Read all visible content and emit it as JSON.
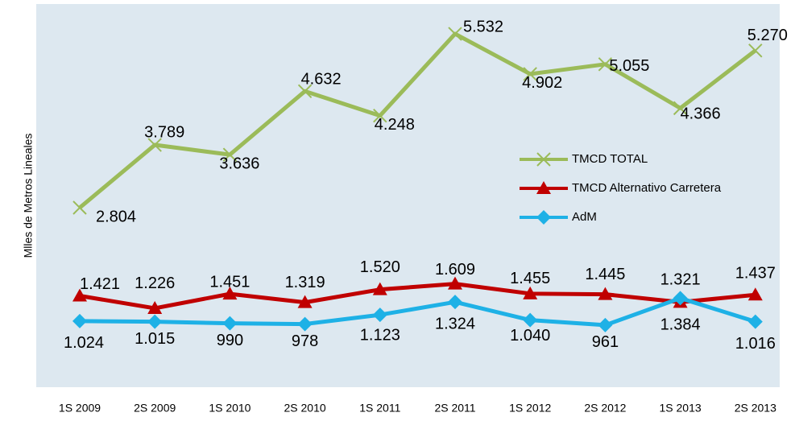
{
  "chart_data": {
    "type": "line",
    "y_label": "Mlles de Metros Lineales",
    "categories": [
      "1S 2009",
      "2S 2009",
      "1S 2010",
      "2S 2010",
      "1S 2011",
      "2S 2011",
      "1S 2012",
      "2S 2012",
      "1S 2013",
      "2S 2013"
    ],
    "ylim": [
      0,
      6000
    ],
    "legend": "inside",
    "series": [
      {
        "name": "TMCD TOTAL",
        "color": "#9bbb59",
        "marker": "x",
        "values": [
          2804,
          3789,
          3636,
          4632,
          4248,
          5532,
          4902,
          5055,
          4366,
          5270
        ],
        "value_labels": [
          "2.804",
          "3.789",
          "3.636",
          "4.632",
          "4.248",
          "5.532",
          "4.902",
          "5.055",
          "4.366",
          "5.270"
        ]
      },
      {
        "name": "TMCD Alternativo Carretera",
        "color": "#c00000",
        "marker": "triangle",
        "values": [
          1421,
          1226,
          1451,
          1319,
          1520,
          1609,
          1455,
          1445,
          1321,
          1437
        ],
        "value_labels": [
          "1.421",
          "1.226",
          "1.451",
          "1.319",
          "1.520",
          "1.609",
          "1.455",
          "1.445",
          "1.321",
          "1.437"
        ]
      },
      {
        "name": "AdM",
        "color": "#1eb1e6",
        "marker": "diamond",
        "values": [
          1024,
          1015,
          990,
          978,
          1123,
          1324,
          1040,
          961,
          1384,
          1016
        ],
        "value_labels": [
          "1.024",
          "1.015",
          "990",
          "978",
          "1.123",
          "1.324",
          "1.040",
          "961",
          "1.384",
          "1.016"
        ]
      }
    ]
  }
}
